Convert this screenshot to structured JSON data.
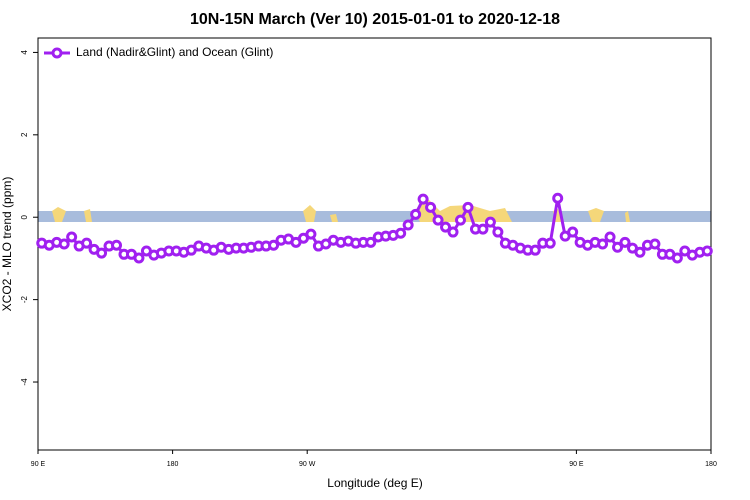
{
  "chart_data": {
    "type": "line",
    "title": "10N-15N March (Ver 10)   2015-01-01 to 2020-12-18",
    "x_label": "Longitude (deg E)",
    "y_label": "XCO2 - MLO trend (ppm)",
    "x": [
      92.5,
      97.5,
      102.5,
      107.5,
      112.5,
      117.5,
      122.5,
      127.5,
      132.5,
      137.5,
      142.5,
      147.5,
      152.5,
      157.5,
      162.5,
      167.5,
      172.5,
      177.5,
      182.5,
      187.5,
      192.5,
      197.5,
      202.5,
      207.5,
      212.5,
      217.5,
      222.5,
      227.5,
      232.5,
      237.5,
      242.5,
      247.5,
      252.5,
      257.5,
      262.5,
      267.5,
      272.5,
      277.5,
      282.5,
      287.5,
      292.5,
      297.5,
      302.5,
      307.5,
      312.5,
      317.5,
      322.5,
      327.5,
      332.5,
      337.5,
      342.5,
      347.5,
      352.5,
      357.5,
      362.5,
      367.5,
      372.5,
      377.5,
      382.5,
      387.5,
      392.5,
      397.5,
      402.5,
      407.5,
      412.5,
      417.5,
      422.5,
      427.5,
      432.5,
      437.5,
      442.5,
      447.5,
      452.5,
      457.5,
      462.5,
      467.5,
      472.5,
      477.5,
      482.5,
      487.5,
      492.5,
      497.5,
      502.5,
      507.5,
      512.5,
      517.5,
      522.5,
      527.5,
      532.5,
      537.5
    ],
    "series": [
      {
        "name": "Land (Nadir&Glint) and Ocean (Glint)",
        "color": "#a020f0",
        "values": [
          -0.63,
          -0.68,
          -0.61,
          -0.65,
          -0.48,
          -0.7,
          -0.63,
          -0.78,
          -0.87,
          -0.7,
          -0.68,
          -0.9,
          -0.9,
          -0.99,
          -0.82,
          -0.92,
          -0.87,
          -0.82,
          -0.82,
          -0.85,
          -0.8,
          -0.7,
          -0.75,
          -0.8,
          -0.73,
          -0.78,
          -0.75,
          -0.75,
          -0.73,
          -0.7,
          -0.7,
          -0.68,
          -0.56,
          -0.53,
          -0.61,
          -0.51,
          -0.41,
          -0.7,
          -0.65,
          -0.56,
          -0.61,
          -0.58,
          -0.63,
          -0.61,
          -0.61,
          -0.48,
          -0.46,
          -0.44,
          -0.39,
          -0.19,
          0.07,
          0.44,
          0.24,
          -0.07,
          -0.24,
          -0.36,
          -0.07,
          0.24,
          -0.29,
          -0.29,
          -0.12,
          -0.36,
          -0.63,
          -0.68,
          -0.75,
          -0.8,
          -0.8,
          -0.63,
          -0.63,
          0.46,
          -0.46,
          -0.36,
          -0.61,
          -0.68,
          -0.61,
          -0.65,
          -0.48,
          -0.73,
          -0.61,
          -0.75,
          -0.85,
          -0.68,
          -0.65,
          -0.9,
          -0.9,
          -0.99,
          -0.82,
          -0.92,
          -0.85,
          -0.82
        ]
      }
    ],
    "xlim": [
      90,
      540
    ],
    "xticks": [
      {
        "value": 90,
        "label": "90 E"
      },
      180,
      {
        "value": 270,
        "label": "90 W"
      },
      {
        "value": 450,
        "label": "90 E"
      },
      {
        "value": 540,
        "label": "180"
      }
    ],
    "ylim": [
      -5.65,
      4.35
    ],
    "yticks": [
      -4,
      -2,
      0,
      2,
      4
    ],
    "legend": "top-left"
  }
}
